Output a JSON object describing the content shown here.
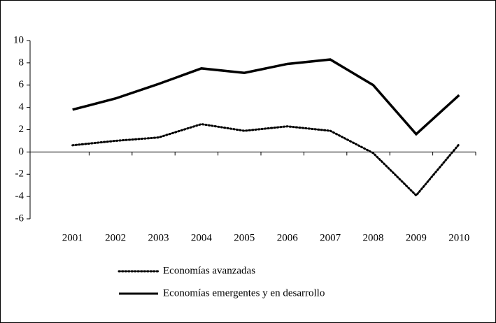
{
  "chart_data": {
    "type": "line",
    "categories": [
      "2001",
      "2002",
      "2003",
      "2004",
      "2005",
      "2006",
      "2007",
      "2008",
      "2009",
      "2010"
    ],
    "series": [
      {
        "name": "Economías avanzadas",
        "color": "#000000",
        "dash": "dotted",
        "values": [
          0.6,
          1.0,
          1.3,
          2.5,
          1.9,
          2.3,
          1.9,
          -0.1,
          -3.9,
          0.7
        ]
      },
      {
        "name": "Economías emergentes y en desarrollo",
        "color": "#000000",
        "dash": "solid",
        "values": [
          3.8,
          4.8,
          6.1,
          7.5,
          7.1,
          7.9,
          8.3,
          6.0,
          1.6,
          5.1
        ]
      }
    ],
    "ylim": [
      -6,
      10
    ],
    "yticks": [
      -6,
      -4,
      -2,
      0,
      2,
      4,
      6,
      8,
      10
    ],
    "grid": false
  }
}
